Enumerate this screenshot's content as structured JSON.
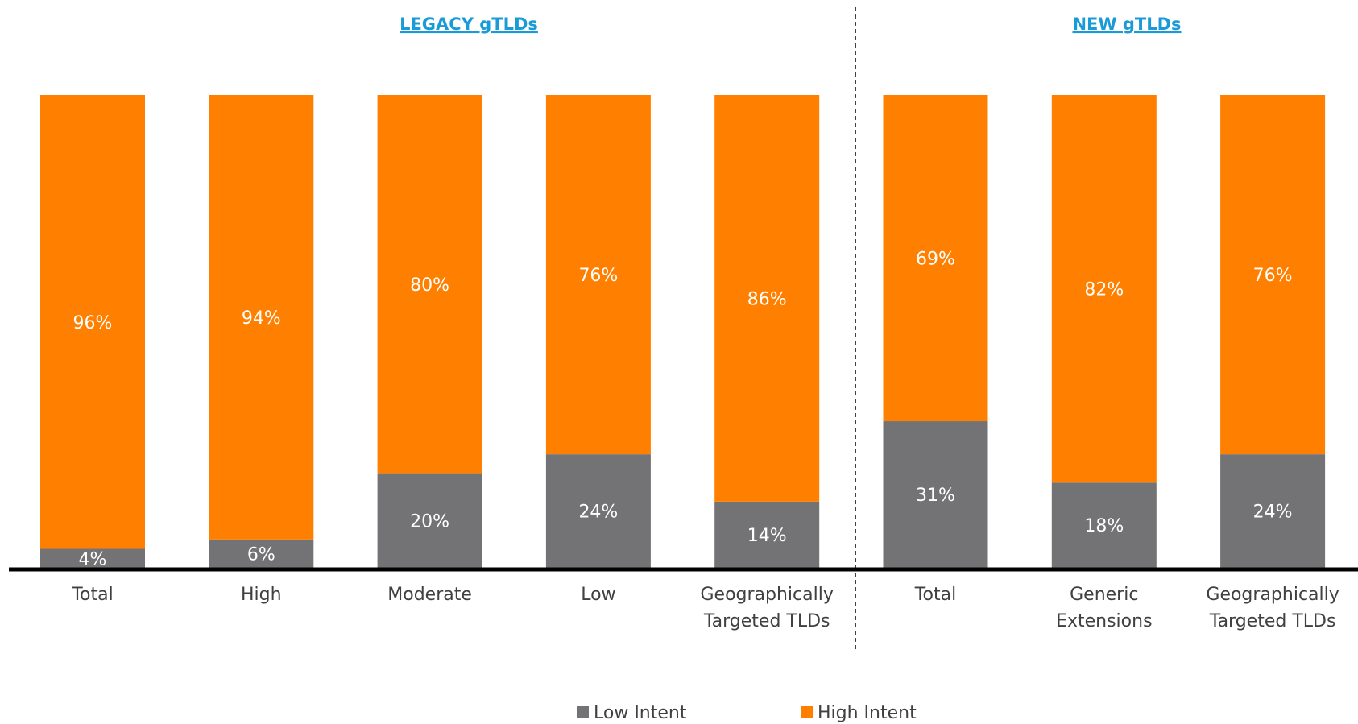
{
  "chart_data": {
    "type": "stacked_bar",
    "group_labels": [
      "LEGACY gTLDs",
      "NEW gTLDs"
    ],
    "categories": [
      "Total",
      "High",
      "Moderate",
      "Low",
      "Geographically Targeted TLDs",
      "Total",
      "Generic Extensions",
      "Geographically Targeted TLDs"
    ],
    "series": [
      {
        "name": "Low Intent",
        "color": "#737376",
        "values": [
          4,
          6,
          20,
          24,
          14,
          31,
          18,
          24
        ],
        "value_labels": [
          "4%",
          "6%",
          "20%",
          "24%",
          "14%",
          "31%",
          "18%",
          "24%"
        ]
      },
      {
        "name": "High Intent",
        "color": "#ff8000",
        "values": [
          96,
          94,
          80,
          76,
          86,
          69,
          82,
          76
        ],
        "value_labels": [
          "96%",
          "94%",
          "80%",
          "76%",
          "86%",
          "69%",
          "82%",
          "76%"
        ]
      }
    ],
    "ylim": [
      0,
      100
    ]
  }
}
